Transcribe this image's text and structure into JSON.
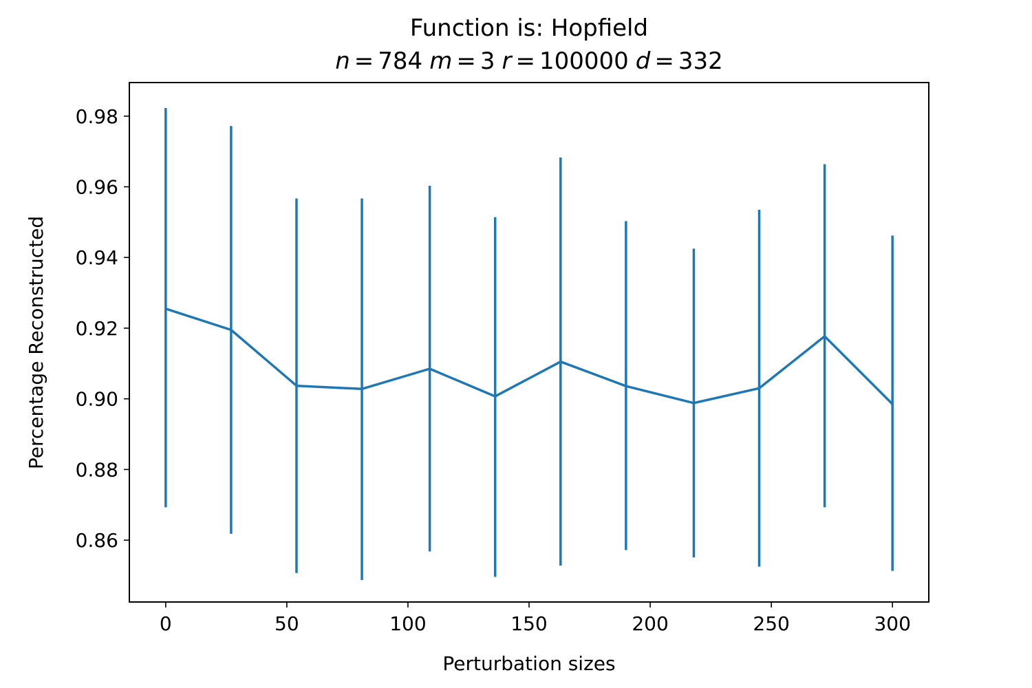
{
  "chart_data": {
    "type": "line",
    "title": "Function is: Hopfield",
    "subtitle": {
      "var1": "n",
      "val1": "784",
      "var2": "m",
      "val2": "3",
      "var3": "r",
      "val3": "100000",
      "var4": "d",
      "val4": "332",
      "eq": "="
    },
    "xlabel": "Perturbation sizes",
    "ylabel": "Percentage Reconstructed",
    "xlim": [
      -15,
      315
    ],
    "ylim": [
      0.8425,
      0.9895
    ],
    "xticks": [
      0,
      50,
      100,
      150,
      200,
      250,
      300
    ],
    "xtick_labels": [
      "0",
      "50",
      "100",
      "150",
      "200",
      "250",
      "300"
    ],
    "yticks": [
      0.86,
      0.88,
      0.9,
      0.92,
      0.94,
      0.96,
      0.98
    ],
    "ytick_labels": [
      "0.86",
      "0.88",
      "0.90",
      "0.92",
      "0.94",
      "0.96",
      "0.98"
    ],
    "grid": false,
    "series": [
      {
        "color": "#1f77b4",
        "x": [
          0,
          27,
          54,
          81,
          109,
          136,
          163,
          190,
          218,
          245,
          272,
          300
        ],
        "y": [
          0.9255,
          0.9195,
          0.9037,
          0.9028,
          0.9085,
          0.9007,
          0.9105,
          0.9036,
          0.8988,
          0.903,
          0.9177,
          0.8985
        ],
        "yerr_low": [
          0.8693,
          0.8618,
          0.8507,
          0.8487,
          0.8568,
          0.8496,
          0.8528,
          0.8572,
          0.8551,
          0.8525,
          0.8693,
          0.8513
        ],
        "yerr_high": [
          0.9823,
          0.9772,
          0.9567,
          0.9567,
          0.9603,
          0.9514,
          0.9683,
          0.9503,
          0.9425,
          0.9535,
          0.9664,
          0.9462
        ]
      }
    ]
  }
}
